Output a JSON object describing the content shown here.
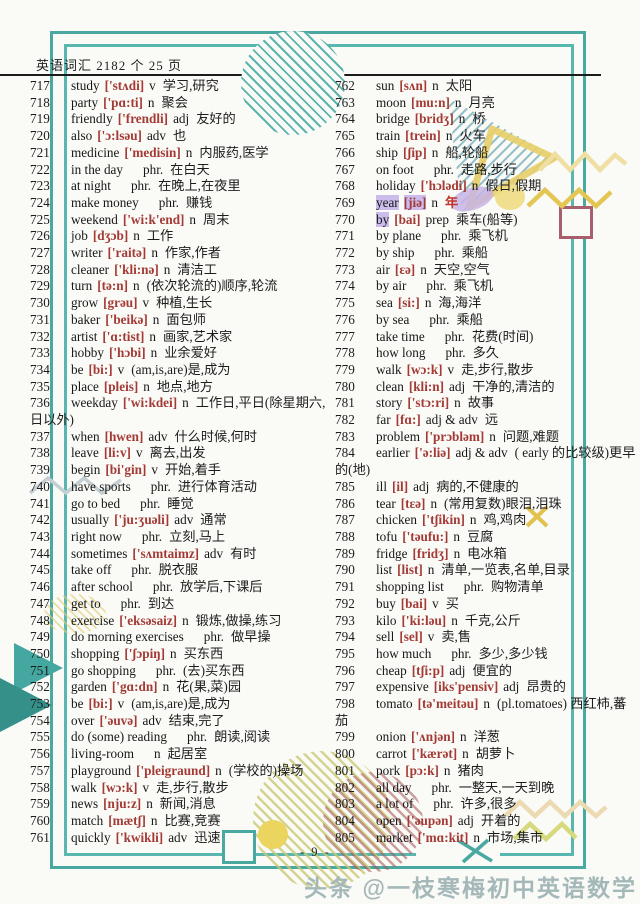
{
  "page": {
    "title": "英语词汇 2182 个  25 页",
    "page_number": "- 9 -",
    "watermark": "头条 @一枝寒梅初中英语数学"
  },
  "colors": {
    "frame_teal": "#49a9a1",
    "phonetic_red": "#a33a35",
    "highlight_lavender": "#cbbcec",
    "accent_yellow": "#ecd55e",
    "accent_maroon": "#a85f6d",
    "watermark_gray": "#a5b8b9"
  },
  "vocabulary": {
    "left": [
      {
        "n": "717",
        "w": "study",
        "p": "['stʌdi]",
        "pos": "v",
        "m": "学习,研究"
      },
      {
        "n": "718",
        "w": "party",
        "p": "['pɑ:ti]",
        "pos": "n",
        "m": "聚会"
      },
      {
        "n": "719",
        "w": "friendly",
        "p": "['frendli]",
        "pos": "adj",
        "m": "友好的"
      },
      {
        "n": "720",
        "w": "also",
        "p": "['ɔ:lsəu]",
        "pos": "adv",
        "m": "也"
      },
      {
        "n": "721",
        "w": "medicine",
        "p": "['medisin]",
        "pos": "n",
        "m": "内服药,医学"
      },
      {
        "n": "722",
        "w": "in the day",
        "p": "",
        "pos": "phr.",
        "m": "在白天"
      },
      {
        "n": "723",
        "w": "at night",
        "p": "",
        "pos": "phr.",
        "m": "在晚上,在夜里"
      },
      {
        "n": "724",
        "w": "make money",
        "p": "",
        "pos": "phr.",
        "m": "赚钱"
      },
      {
        "n": "725",
        "w": "weekend",
        "p": "['wi:k'end]",
        "pos": "n",
        "m": "周末"
      },
      {
        "n": "726",
        "w": "job",
        "p": "[dʒɔb]",
        "pos": "n",
        "m": "工作"
      },
      {
        "n": "727",
        "w": "writer",
        "p": "['raitə]",
        "pos": "n",
        "m": "作家,作者"
      },
      {
        "n": "728",
        "w": "cleaner",
        "p": "['kli:nə]",
        "pos": "n",
        "m": "清洁工"
      },
      {
        "n": "729",
        "w": "turn",
        "p": "[tə:n]",
        "pos": "n",
        "m": "(依次轮流的)顺序,轮流"
      },
      {
        "n": "730",
        "w": "grow",
        "p": "[grəu]",
        "pos": "v",
        "m": "种植,生长"
      },
      {
        "n": "731",
        "w": "baker",
        "p": "['beikə]",
        "pos": "n",
        "m": "面包师"
      },
      {
        "n": "732",
        "w": "artist",
        "p": "['ɑ:tist]",
        "pos": "n",
        "m": "画家,艺术家"
      },
      {
        "n": "733",
        "w": "hobby",
        "p": "['hɔbi]",
        "pos": "n",
        "m": "业余爱好"
      },
      {
        "n": "734",
        "w": "be",
        "p": "[bi:]",
        "pos": "v",
        "m": "(am,is,are)是,成为"
      },
      {
        "n": "735",
        "w": "place",
        "p": "[pleis]",
        "pos": "n",
        "m": "地点,地方"
      },
      {
        "n": "736",
        "w": "weekday",
        "p": "['wi:kdei]",
        "pos": "n",
        "m": "工作日,平日(除星期六,日以外)"
      },
      {
        "n": "737",
        "w": "when",
        "p": "[hwen]",
        "pos": "adv",
        "m": "什么时候,何时"
      },
      {
        "n": "738",
        "w": "leave",
        "p": "[li:v]",
        "pos": "v",
        "m": "离去,出发"
      },
      {
        "n": "739",
        "w": "begin",
        "p": "[bi'gin]",
        "pos": "v",
        "m": "开始,着手"
      },
      {
        "n": "740",
        "w": "have sports",
        "p": "",
        "pos": "phr.",
        "m": "进行体育活动"
      },
      {
        "n": "741",
        "w": "go to bed",
        "p": "",
        "pos": "phr.",
        "m": "睡觉"
      },
      {
        "n": "742",
        "w": "usually",
        "p": "['ju:ʒuəli]",
        "pos": "adv",
        "m": "通常"
      },
      {
        "n": "743",
        "w": "right now",
        "p": "",
        "pos": "phr.",
        "m": "立刻,马上"
      },
      {
        "n": "744",
        "w": "sometimes",
        "p": "['sʌmtaimz]",
        "pos": "adv",
        "m": "有时"
      },
      {
        "n": "745",
        "w": "take off",
        "p": "",
        "pos": "phr.",
        "m": "脱衣服"
      },
      {
        "n": "746",
        "w": "after school",
        "p": "",
        "pos": "phr.",
        "m": "放学后,下课后"
      },
      {
        "n": "747",
        "w": "get to",
        "p": "",
        "pos": "phr.",
        "m": "到达"
      },
      {
        "n": "748",
        "w": "exercise",
        "p": "['eksəsaiz]",
        "pos": "n",
        "m": "锻炼,做操,练习"
      },
      {
        "n": "749",
        "w": "do morning exercises",
        "p": "",
        "pos": "phr.",
        "m": "做早操"
      },
      {
        "n": "750",
        "w": "shopping",
        "p": "['ʃɔpiŋ]",
        "pos": "n",
        "m": "买东西"
      },
      {
        "n": "751",
        "w": "go shopping",
        "p": "",
        "pos": "phr.",
        "m": "(去)买东西"
      },
      {
        "n": "752",
        "w": "garden",
        "p": "['gɑ:dn]",
        "pos": "n",
        "m": "花(果,菜)园"
      },
      {
        "n": "753",
        "w": "be",
        "p": "[bi:]",
        "pos": "v",
        "m": "(am,is,are)是,成为"
      },
      {
        "n": "754",
        "w": "over",
        "p": "['əuvə]",
        "pos": "adv",
        "m": "结束,完了"
      },
      {
        "n": "755",
        "w": "do (some) reading",
        "p": "",
        "pos": "phr.",
        "m": "朗读,阅读"
      },
      {
        "n": "756",
        "w": "living-room",
        "p": "",
        "pos": "n",
        "m": "起居室"
      },
      {
        "n": "757",
        "w": "playground",
        "p": "['pleigraund]",
        "pos": "n",
        "m": "(学校的)操场"
      },
      {
        "n": "758",
        "w": "walk",
        "p": "[wɔ:k]",
        "pos": "v",
        "m": "走,步行,散步"
      },
      {
        "n": "759",
        "w": "news",
        "p": "[nju:z]",
        "pos": "n",
        "m": "新闻,消息"
      },
      {
        "n": "760",
        "w": "match",
        "p": "[mætʃ]",
        "pos": "n",
        "m": "比赛,竞赛"
      },
      {
        "n": "761",
        "w": "quickly",
        "p": "['kwikli]",
        "pos": "adv",
        "m": "迅速"
      }
    ],
    "right": [
      {
        "n": "762",
        "w": "sun",
        "p": "[sʌn]",
        "pos": "n",
        "m": "太阳"
      },
      {
        "n": "763",
        "w": "moon",
        "p": "[mu:n]",
        "pos": "n",
        "m": "月亮"
      },
      {
        "n": "764",
        "w": "bridge",
        "p": "[bridʒ]",
        "pos": "n",
        "m": "桥"
      },
      {
        "n": "765",
        "w": "train",
        "p": "[trein]",
        "pos": "n",
        "m": "火车"
      },
      {
        "n": "766",
        "w": "ship",
        "p": "[ʃip]",
        "pos": "n",
        "m": "船,轮船"
      },
      {
        "n": "767",
        "w": "on foot",
        "p": "",
        "pos": "phr.",
        "m": "走路,步行"
      },
      {
        "n": "768",
        "w": "holiday",
        "p": "['hɔlədi]",
        "pos": "n",
        "m": "假日,假期"
      },
      {
        "n": "769",
        "w": "year",
        "p": "[jiə]",
        "pos": "n",
        "m": "年",
        "hl": "wp",
        "mred": true
      },
      {
        "n": "770",
        "w": "by",
        "p": "[bai]",
        "pos": "prep",
        "m": "乘车(船等)",
        "hl": "w"
      },
      {
        "n": "771",
        "w": "by plane",
        "p": "",
        "pos": "phr.",
        "m": "乘飞机"
      },
      {
        "n": "772",
        "w": "by ship",
        "p": "",
        "pos": "phr.",
        "m": "乘船"
      },
      {
        "n": "773",
        "w": "air",
        "p": "[ɛə]",
        "pos": "n",
        "m": "天空,空气"
      },
      {
        "n": "774",
        "w": "by air",
        "p": "",
        "pos": "phr.",
        "m": "乘飞机"
      },
      {
        "n": "775",
        "w": "sea",
        "p": "[si:]",
        "pos": "n",
        "m": "海,海洋"
      },
      {
        "n": "776",
        "w": "by sea",
        "p": "",
        "pos": "phr.",
        "m": "乘船"
      },
      {
        "n": "777",
        "w": "take time",
        "p": "",
        "pos": "phr.",
        "m": "花费(时间)"
      },
      {
        "n": "778",
        "w": "how long",
        "p": "",
        "pos": "phr.",
        "m": "多久"
      },
      {
        "n": "779",
        "w": "walk",
        "p": "[wɔ:k]",
        "pos": "v",
        "m": "走,步行,散步"
      },
      {
        "n": "780",
        "w": "clean",
        "p": "[kli:n]",
        "pos": "adj",
        "m": "干净的,清洁的"
      },
      {
        "n": "781",
        "w": "story",
        "p": "['stɔ:ri]",
        "pos": "n",
        "m": "故事"
      },
      {
        "n": "782",
        "w": "far",
        "p": "[fɑ:]",
        "pos": "adj & adv",
        "m": "远"
      },
      {
        "n": "783",
        "w": "problem",
        "p": "['prɔbləm]",
        "pos": "n",
        "m": "问题,难题"
      },
      {
        "n": "784",
        "w": "earlier",
        "p": "['ə:liə]",
        "pos": "adj & adv",
        "m": "( early 的比较级)更早的(地)"
      },
      {
        "n": "785",
        "w": "ill",
        "p": "[il]",
        "pos": "adj",
        "m": "病的,不健康的"
      },
      {
        "n": "786",
        "w": "tear",
        "p": "[tɛə]",
        "pos": "n",
        "m": "(常用复数)眼泪,泪珠"
      },
      {
        "n": "787",
        "w": "chicken",
        "p": "['tʃikin]",
        "pos": "n",
        "m": "鸡,鸡肉"
      },
      {
        "n": "788",
        "w": "tofu",
        "p": "['təufu:]",
        "pos": "n",
        "m": "豆腐"
      },
      {
        "n": "789",
        "w": "fridge",
        "p": "[fridʒ]",
        "pos": "n",
        "m": "电冰箱"
      },
      {
        "n": "790",
        "w": "list",
        "p": "[list]",
        "pos": "n",
        "m": "清单,一览表,名单,目录"
      },
      {
        "n": "791",
        "w": "shopping list",
        "p": "",
        "pos": "phr.",
        "m": "购物清单"
      },
      {
        "n": "792",
        "w": "buy",
        "p": "[bai]",
        "pos": "v",
        "m": "买"
      },
      {
        "n": "793",
        "w": "kilo",
        "p": "['ki:ləu]",
        "pos": "n",
        "m": "千克,公斤"
      },
      {
        "n": "794",
        "w": "sell",
        "p": "[sel]",
        "pos": "v",
        "m": "卖,售"
      },
      {
        "n": "795",
        "w": "how much",
        "p": "",
        "pos": "phr.",
        "m": "多少,多少钱"
      },
      {
        "n": "796",
        "w": "cheap",
        "p": "[tʃi:p]",
        "pos": "adj",
        "m": "便宜的"
      },
      {
        "n": "797",
        "w": "expensive",
        "p": "[iks'pensiv]",
        "pos": "adj",
        "m": "昂贵的"
      },
      {
        "n": "798",
        "w": "tomato",
        "p": "[tə'meitəu]",
        "pos": "n",
        "m": "(pl.tomatoes) 西红柿,蕃茄"
      },
      {
        "n": "799",
        "w": "onion",
        "p": "['ʌnjən]",
        "pos": "n",
        "m": "洋葱"
      },
      {
        "n": "800",
        "w": "carrot",
        "p": "['kærət]",
        "pos": "n",
        "m": "胡萝卜"
      },
      {
        "n": "801",
        "w": "pork",
        "p": "[pɔ:k]",
        "pos": "n",
        "m": "猪肉"
      },
      {
        "n": "802",
        "w": "all day",
        "p": "",
        "pos": "phr.",
        "m": "一整天,一天到晚"
      },
      {
        "n": "803",
        "w": "a lot of",
        "p": "",
        "pos": "phr.",
        "m": "许多,很多"
      },
      {
        "n": "804",
        "w": "open",
        "p": "['əupən]",
        "pos": "adj",
        "m": "开着的"
      },
      {
        "n": "805",
        "w": "market",
        "p": "['mɑ:kit]",
        "pos": "n",
        "m": "市场,集市"
      }
    ]
  }
}
